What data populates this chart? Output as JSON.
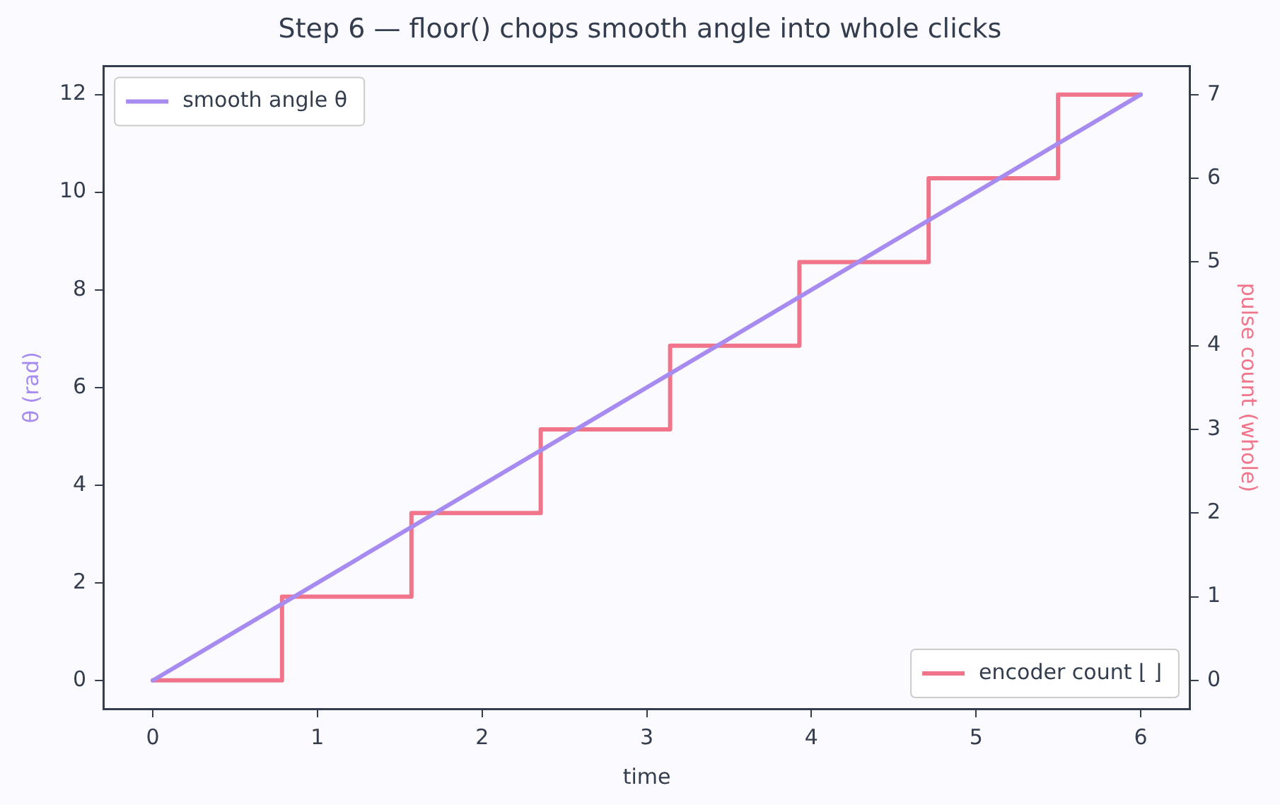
{
  "chart_data": {
    "type": "line",
    "title": "Step 6 — floor() chops smooth angle into whole clicks",
    "xlabel": "time",
    "ylabel": "θ (rad)",
    "y2label": "pulse count (whole)",
    "xlim": [
      -0.3,
      6.3
    ],
    "xticks": [
      0,
      1,
      2,
      3,
      4,
      5,
      6
    ],
    "ylim": [
      -0.58,
      12.58
    ],
    "yticks": [
      0,
      2,
      4,
      6,
      8,
      10,
      12
    ],
    "y2lim": [
      -0.34,
      7.34
    ],
    "y2ticks": [
      0,
      1,
      2,
      3,
      4,
      5,
      6,
      7
    ],
    "grid": false,
    "legend": "top left",
    "marker": "none",
    "line_style": "solid",
    "series": [
      {
        "name": "smooth angle θ",
        "color": "#a78bf0",
        "x": [
          0,
          6
        ],
        "values": [
          0,
          12
        ]
      },
      {
        "name": "encoder count ⌊ ⌋",
        "type": "step",
        "axis": "y2",
        "color": "#f0758a",
        "x": [
          0,
          0.785,
          1.571,
          2.356,
          3.142,
          3.927,
          4.712,
          5.498,
          6
        ],
        "values": [
          0,
          1,
          2,
          3,
          4,
          5,
          6,
          7,
          7
        ]
      }
    ]
  }
}
